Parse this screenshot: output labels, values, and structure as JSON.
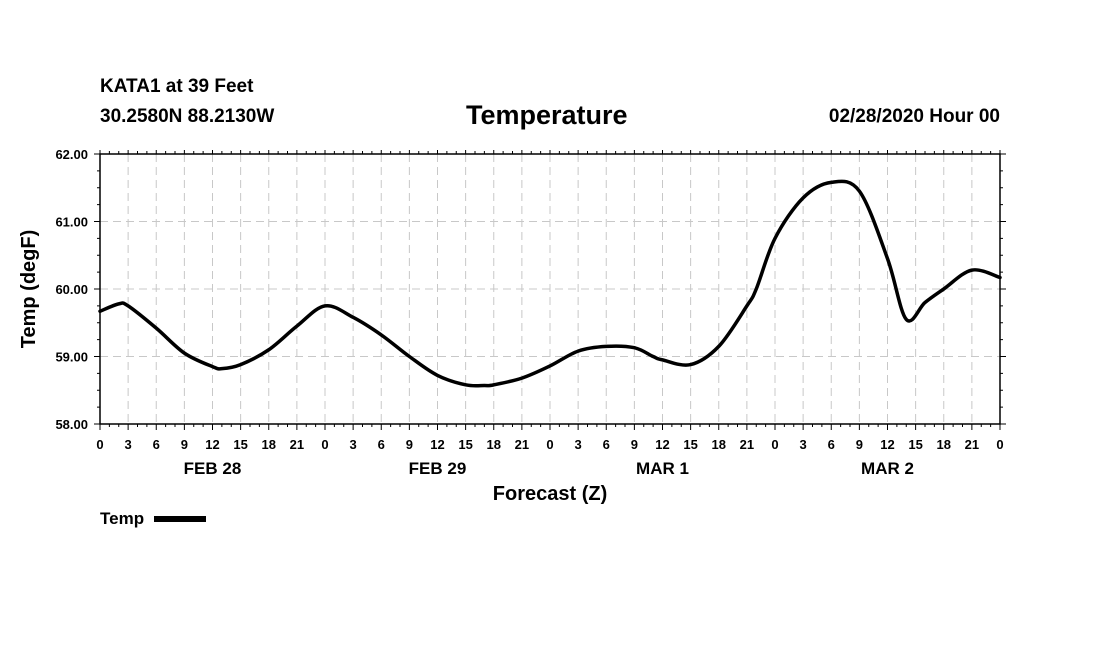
{
  "header": {
    "station": "KATA1 at 39 Feet",
    "coords": "30.2580N 88.2130W",
    "title": "Temperature",
    "timestamp": "02/28/2020 Hour 00"
  },
  "legend": {
    "label": "Temp"
  },
  "colors": {
    "line": "#000000",
    "grid": "#c8c8c8",
    "axis": "#000000"
  },
  "chart_data": {
    "type": "line",
    "title": "Temperature",
    "xlabel": "Forecast (Z)",
    "ylabel": "Temp (degF)",
    "ylim": [
      58,
      62
    ],
    "xlim": [
      0,
      96
    ],
    "yticks": [
      "58.00",
      "59.00",
      "60.00",
      "61.00",
      "62.00"
    ],
    "xtick_labels": [
      "0",
      "3",
      "6",
      "9",
      "12",
      "15",
      "18",
      "21",
      "0",
      "3",
      "6",
      "9",
      "12",
      "15",
      "18",
      "21",
      "0",
      "3",
      "6",
      "9",
      "12",
      "15",
      "18",
      "21",
      "0",
      "3",
      "6",
      "9",
      "12",
      "15",
      "18",
      "21",
      "0"
    ],
    "day_labels": [
      {
        "label": "FEB 28",
        "hour": 12
      },
      {
        "label": "FEB 29",
        "hour": 36
      },
      {
        "label": "MAR 1",
        "hour": 60
      },
      {
        "label": "MAR 2",
        "hour": 84
      }
    ],
    "grid": true,
    "legend_position": "bottom-left",
    "series": [
      {
        "name": "Temp",
        "x": [
          0,
          2,
          3,
          6,
          9,
          12,
          13,
          15,
          18,
          21,
          24,
          27,
          30,
          33,
          36,
          39,
          41,
          42,
          45,
          48,
          51,
          54,
          57,
          59,
          60,
          63,
          66,
          69,
          70,
          72,
          75,
          78,
          81,
          84,
          86,
          88,
          90,
          93,
          96
        ],
        "values": [
          59.67,
          59.78,
          59.75,
          59.42,
          59.05,
          58.85,
          58.82,
          58.88,
          59.1,
          59.45,
          59.75,
          59.58,
          59.32,
          59.0,
          58.72,
          58.58,
          58.57,
          58.58,
          58.68,
          58.86,
          59.08,
          59.15,
          59.13,
          59.0,
          58.95,
          58.88,
          59.15,
          59.75,
          60.0,
          60.75,
          61.35,
          61.58,
          61.45,
          60.45,
          59.55,
          59.8,
          60.0,
          60.28,
          60.17
        ]
      }
    ]
  }
}
